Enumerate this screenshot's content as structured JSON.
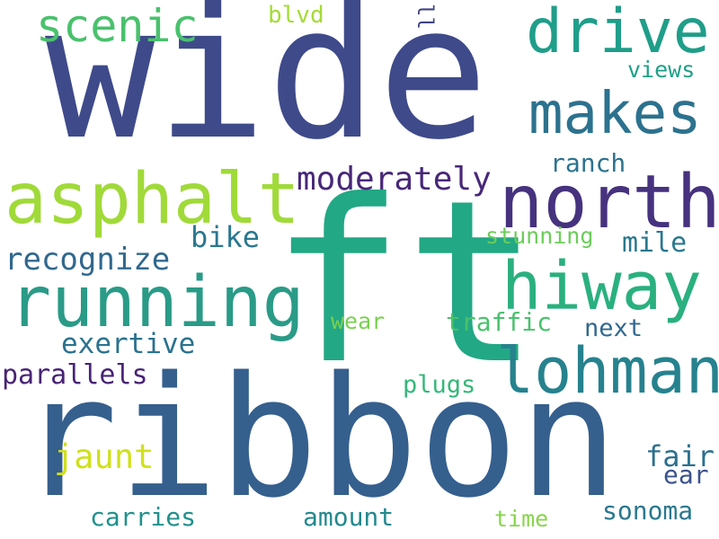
{
  "words": {
    "wide": {
      "text": "wide",
      "color": "#3f4a8a"
    },
    "ft": {
      "text": "ft",
      "color": "#22a884"
    },
    "ribbon": {
      "text": "ribbon",
      "color": "#355f8d"
    },
    "running": {
      "text": "running",
      "color": "#2a9b87"
    },
    "asphalt": {
      "text": "asphalt",
      "color": "#a0da39"
    },
    "north": {
      "text": "north",
      "color": "#46327e"
    },
    "hiway": {
      "text": "hiway",
      "color": "#2ab07f"
    },
    "lohman": {
      "text": "lohman",
      "color": "#26828e"
    },
    "drive": {
      "text": "drive",
      "color": "#1f9e89"
    },
    "makes": {
      "text": "makes",
      "color": "#2c728e"
    },
    "scenic": {
      "text": "scenic",
      "color": "#4ac16d"
    },
    "moderately": {
      "text": "moderately",
      "color": "#482878"
    },
    "recognize": {
      "text": "recognize",
      "color": "#31688e"
    },
    "exertive": {
      "text": "exertive",
      "color": "#2c728e"
    },
    "parallels": {
      "text": "parallels",
      "color": "#482475"
    },
    "bike": {
      "text": "bike",
      "color": "#2a788e"
    },
    "ranch": {
      "text": "ranch",
      "color": "#2c728e"
    },
    "mile": {
      "text": "mile",
      "color": "#2a788e"
    },
    "stunning": {
      "text": "stunning",
      "color": "#6ccd5a"
    },
    "wear": {
      "text": "wear",
      "color": "#7ad151"
    },
    "traffic": {
      "text": "traffic",
      "color": "#4ac16d"
    },
    "next": {
      "text": "next",
      "color": "#31688e"
    },
    "plugs": {
      "text": "plugs",
      "color": "#35b779"
    },
    "jaunt": {
      "text": "jaunt",
      "color": "#d0e11c"
    },
    "fair": {
      "text": "fair",
      "color": "#2d708e"
    },
    "ear": {
      "text": "ear",
      "color": "#3b528b"
    },
    "carries": {
      "text": "carries",
      "color": "#21918c"
    },
    "amount": {
      "text": "amount",
      "color": "#23898e"
    },
    "time": {
      "text": "time",
      "color": "#86d549"
    },
    "sonoma": {
      "text": "sonoma",
      "color": "#2a788e"
    },
    "views": {
      "text": "views",
      "color": "#1fa187"
    },
    "blvd": {
      "text": "blvd",
      "color": "#a5db36"
    },
    "ll": {
      "text": "ll",
      "color": "#414487"
    }
  }
}
